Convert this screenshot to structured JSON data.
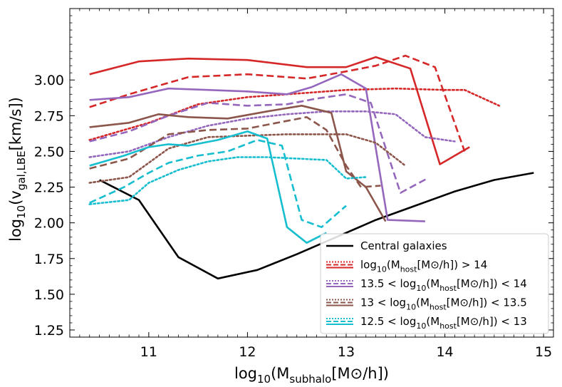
{
  "chart_data": {
    "type": "line",
    "xlabel": "log10(Msubhalo[M⊙/h])",
    "ylabel": "log10(vgal,LBE[km/s])",
    "xlim": [
      10.2,
      15.1
    ],
    "ylim": [
      1.2,
      3.5
    ],
    "xticks": [
      11,
      12,
      13,
      14,
      15
    ],
    "yticks": [
      1.25,
      1.5,
      1.75,
      2.0,
      2.25,
      2.5,
      2.75,
      3.0
    ],
    "legend_position": "lower right",
    "legend": [
      {
        "text": "Central galaxies",
        "color": "#000000",
        "style": "single"
      },
      {
        "text": "log10(Mhost[M⊙/h]) > 14",
        "color": "#d62728",
        "style": "triple"
      },
      {
        "text": "13.5 < log10(Mhost[M⊙/h]) < 14",
        "color": "#9467bd",
        "style": "triple"
      },
      {
        "text": "13 < log10(Mhost[M⊙/h]) < 13.5",
        "color": "#8c564b",
        "style": "triple"
      },
      {
        "text": "12.5 < log10(Mhost[M⊙/h]) < 13",
        "color": "#17becf",
        "style": "triple"
      }
    ],
    "series": [
      {
        "name": "Central galaxies",
        "color": "#000000",
        "dash": "solid",
        "x": [
          10.5,
          10.9,
          11.3,
          11.7,
          12.1,
          12.5,
          12.9,
          13.3,
          13.7,
          14.1,
          14.5,
          14.9
        ],
        "y": [
          2.3,
          2.16,
          1.76,
          1.61,
          1.67,
          1.78,
          1.9,
          2.02,
          2.12,
          2.22,
          2.3,
          2.35
        ]
      },
      {
        "color": "#d62728",
        "dash": "solid",
        "x": [
          10.4,
          10.9,
          11.4,
          12.0,
          12.6,
          13.0,
          13.3,
          13.65,
          13.95,
          14.25
        ],
        "y": [
          3.04,
          3.13,
          3.15,
          3.14,
          3.09,
          3.09,
          3.16,
          3.08,
          2.41,
          2.53
        ]
      },
      {
        "color": "#d62728",
        "dash": "dashed",
        "x": [
          10.4,
          10.8,
          11.4,
          12.0,
          12.6,
          13.0,
          13.3,
          13.6,
          13.9,
          14.2
        ],
        "y": [
          2.81,
          2.9,
          3.02,
          3.04,
          3.01,
          3.06,
          3.1,
          3.17,
          3.09,
          2.5
        ]
      },
      {
        "color": "#d62728",
        "dash": "dotted",
        "x": [
          10.4,
          11.0,
          11.5,
          12.0,
          12.6,
          13.0,
          13.5,
          14.0,
          14.2,
          14.55
        ],
        "y": [
          2.58,
          2.7,
          2.83,
          2.88,
          2.91,
          2.93,
          2.94,
          2.93,
          2.93,
          2.82
        ]
      },
      {
        "color": "#9467bd",
        "dash": "solid",
        "x": [
          10.4,
          10.8,
          11.2,
          11.6,
          12.0,
          12.4,
          12.65,
          12.95,
          13.2,
          13.42,
          13.8
        ],
        "y": [
          2.86,
          2.88,
          2.94,
          2.93,
          2.92,
          2.9,
          2.95,
          3.04,
          2.94,
          2.02,
          2.01
        ]
      },
      {
        "color": "#9467bd",
        "dash": "dashed",
        "x": [
          10.4,
          10.8,
          11.2,
          11.6,
          12.0,
          12.4,
          12.7,
          13.0,
          13.25,
          13.55,
          13.82
        ],
        "y": [
          2.57,
          2.64,
          2.75,
          2.84,
          2.82,
          2.83,
          2.87,
          2.9,
          2.84,
          2.21,
          2.31
        ]
      },
      {
        "color": "#9467bd",
        "dash": "dotted",
        "x": [
          10.4,
          10.8,
          11.2,
          11.6,
          12.0,
          12.4,
          12.8,
          13.2,
          13.5,
          13.8,
          14.1
        ],
        "y": [
          2.46,
          2.5,
          2.6,
          2.68,
          2.73,
          2.76,
          2.78,
          2.78,
          2.76,
          2.6,
          2.57
        ]
      },
      {
        "color": "#8c564b",
        "dash": "solid",
        "x": [
          10.4,
          10.8,
          11.1,
          11.4,
          11.8,
          12.2,
          12.55,
          12.85,
          13.0,
          13.2,
          13.4
        ],
        "y": [
          2.67,
          2.7,
          2.76,
          2.74,
          2.73,
          2.78,
          2.82,
          2.77,
          2.36,
          2.25,
          2.01
        ]
      },
      {
        "color": "#8c564b",
        "dash": "dashed",
        "x": [
          10.4,
          10.8,
          11.2,
          11.6,
          12.0,
          12.3,
          12.6,
          12.8,
          13.0,
          13.15,
          13.35
        ],
        "y": [
          2.38,
          2.45,
          2.62,
          2.65,
          2.66,
          2.7,
          2.74,
          2.65,
          2.4,
          2.25,
          2.26
        ]
      },
      {
        "color": "#8c564b",
        "dash": "dotted",
        "x": [
          10.4,
          10.8,
          11.2,
          11.6,
          12.0,
          12.4,
          12.7,
          13.0,
          13.3,
          13.6
        ],
        "y": [
          2.28,
          2.32,
          2.52,
          2.6,
          2.61,
          2.62,
          2.62,
          2.62,
          2.56,
          2.4
        ]
      },
      {
        "color": "#17becf",
        "dash": "solid",
        "x": [
          10.4,
          10.75,
          11.0,
          11.2,
          11.4,
          11.7,
          12.0,
          12.2,
          12.4,
          12.6,
          12.8
        ],
        "y": [
          2.4,
          2.47,
          2.53,
          2.55,
          2.54,
          2.58,
          2.64,
          2.59,
          1.97,
          1.86,
          1.93
        ]
      },
      {
        "color": "#17becf",
        "dash": "dashed",
        "x": [
          10.4,
          10.75,
          11.0,
          11.2,
          11.5,
          11.8,
          12.1,
          12.35,
          12.55,
          12.75,
          13.0
        ],
        "y": [
          2.14,
          2.25,
          2.35,
          2.42,
          2.47,
          2.5,
          2.58,
          2.54,
          2.02,
          1.97,
          2.12
        ]
      },
      {
        "color": "#17becf",
        "dash": "dotted",
        "x": [
          10.4,
          10.8,
          11.0,
          11.3,
          11.6,
          11.9,
          12.2,
          12.5,
          12.8,
          13.0,
          13.2
        ],
        "y": [
          2.13,
          2.16,
          2.28,
          2.37,
          2.43,
          2.46,
          2.46,
          2.45,
          2.44,
          2.31,
          2.32
        ]
      }
    ]
  }
}
